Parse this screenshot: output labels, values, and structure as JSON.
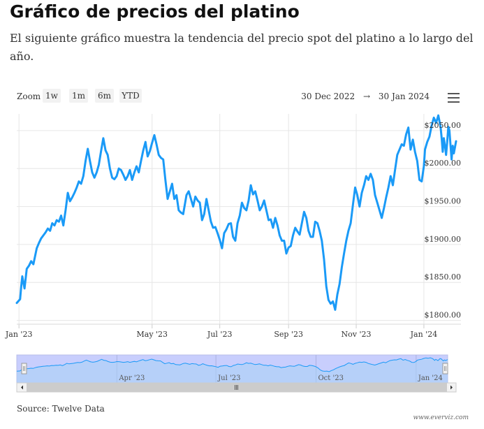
{
  "header": {
    "title": "Gráfico de precios del platino",
    "subtitle": "El siguiente gráfico muestra la tendencia del precio spot del platino a lo largo del año."
  },
  "toolbar": {
    "zoom_label": "Zoom",
    "buttons": [
      "1w",
      "1m",
      "6m",
      "YTD"
    ],
    "date_from": "30 Dec 2022",
    "arrow": "→",
    "date_to": "30 Jan 2024",
    "menu_icon": "hamburger-menu-icon"
  },
  "footer": {
    "source": "Source: Twelve Data",
    "credit": "www.everviz.com"
  },
  "chart_data": {
    "type": "line",
    "title": "",
    "xlabel": "",
    "ylabel": "",
    "ylim": [
      1795,
      2072
    ],
    "xlim": [
      "2022-12-30",
      "2024-01-30"
    ],
    "y_ticks": [
      "$1800.00",
      "$1850.00",
      "$1900.00",
      "$1950.00",
      "$2000.00",
      "$2050.00"
    ],
    "y_tick_values": [
      1800,
      1850,
      1900,
      1950,
      2000,
      2050
    ],
    "x_ticks": [
      "Jan '23",
      "May '23",
      "Jul '23",
      "Sep '23",
      "Nov '23",
      "Jan '24"
    ],
    "x_tick_dates": [
      "2023-01-01",
      "2023-05-01",
      "2023-07-01",
      "2023-09-01",
      "2023-11-01",
      "2024-01-01"
    ],
    "navigator_ticks": [
      "Apr '23",
      "Jul '23",
      "Oct '23",
      "Jan '24"
    ],
    "navigator_tick_dates": [
      "2023-04-01",
      "2023-07-01",
      "2023-10-01",
      "2024-01-01"
    ],
    "color": "#1a9af7",
    "grid": true,
    "series": [
      {
        "values": [
          [
            "2022-12-30",
            1823
          ],
          [
            "2023-01-02",
            1828
          ],
          [
            "2023-01-03",
            1845
          ],
          [
            "2023-01-04",
            1858
          ],
          [
            "2023-01-06",
            1842
          ],
          [
            "2023-01-08",
            1868
          ],
          [
            "2023-01-10",
            1872
          ],
          [
            "2023-01-12",
            1878
          ],
          [
            "2023-01-14",
            1874
          ],
          [
            "2023-01-17",
            1895
          ],
          [
            "2023-01-19",
            1902
          ],
          [
            "2023-01-21",
            1908
          ],
          [
            "2023-01-23",
            1912
          ],
          [
            "2023-01-25",
            1916
          ],
          [
            "2023-01-27",
            1921
          ],
          [
            "2023-01-29",
            1918
          ],
          [
            "2023-01-31",
            1928
          ],
          [
            "2023-02-02",
            1925
          ],
          [
            "2023-02-04",
            1932
          ],
          [
            "2023-02-06",
            1930
          ],
          [
            "2023-02-08",
            1938
          ],
          [
            "2023-02-10",
            1925
          ],
          [
            "2023-02-12",
            1945
          ],
          [
            "2023-02-14",
            1968
          ],
          [
            "2023-02-16",
            1957
          ],
          [
            "2023-02-18",
            1962
          ],
          [
            "2023-02-20",
            1968
          ],
          [
            "2023-02-22",
            1975
          ],
          [
            "2023-02-24",
            1983
          ],
          [
            "2023-02-26",
            1980
          ],
          [
            "2023-02-28",
            1990
          ],
          [
            "2023-03-02",
            2010
          ],
          [
            "2023-03-04",
            2026
          ],
          [
            "2023-03-06",
            2010
          ],
          [
            "2023-03-08",
            1995
          ],
          [
            "2023-03-10",
            1988
          ],
          [
            "2023-03-12",
            1995
          ],
          [
            "2023-03-14",
            2005
          ],
          [
            "2023-03-16",
            2023
          ],
          [
            "2023-03-18",
            2040
          ],
          [
            "2023-03-20",
            2024
          ],
          [
            "2023-03-22",
            2018
          ],
          [
            "2023-03-24",
            2000
          ],
          [
            "2023-03-26",
            1988
          ],
          [
            "2023-03-28",
            1986
          ],
          [
            "2023-03-30",
            1990
          ],
          [
            "2023-04-01",
            2000
          ],
          [
            "2023-04-03",
            1998
          ],
          [
            "2023-04-05",
            1992
          ],
          [
            "2023-04-07",
            1985
          ],
          [
            "2023-04-09",
            1990
          ],
          [
            "2023-04-11",
            1998
          ],
          [
            "2023-04-13",
            1985
          ],
          [
            "2023-04-15",
            1995
          ],
          [
            "2023-04-17",
            2003
          ],
          [
            "2023-04-19",
            1995
          ],
          [
            "2023-04-21",
            2010
          ],
          [
            "2023-04-23",
            2024
          ],
          [
            "2023-04-25",
            2035
          ],
          [
            "2023-04-27",
            2016
          ],
          [
            "2023-04-29",
            2023
          ],
          [
            "2023-05-01",
            2034
          ],
          [
            "2023-05-03",
            2044
          ],
          [
            "2023-05-05",
            2032
          ],
          [
            "2023-05-07",
            2018
          ],
          [
            "2023-05-09",
            2014
          ],
          [
            "2023-05-11",
            2012
          ],
          [
            "2023-05-13",
            1985
          ],
          [
            "2023-05-15",
            1960
          ],
          [
            "2023-05-17",
            1970
          ],
          [
            "2023-05-19",
            1980
          ],
          [
            "2023-05-21",
            1960
          ],
          [
            "2023-05-23",
            1965
          ],
          [
            "2023-05-25",
            1945
          ],
          [
            "2023-05-27",
            1942
          ],
          [
            "2023-05-29",
            1940
          ],
          [
            "2023-06-01",
            1965
          ],
          [
            "2023-06-03",
            1970
          ],
          [
            "2023-06-05",
            1960
          ],
          [
            "2023-06-07",
            1950
          ],
          [
            "2023-06-09",
            1963
          ],
          [
            "2023-06-11",
            1958
          ],
          [
            "2023-06-13",
            1955
          ],
          [
            "2023-06-15",
            1932
          ],
          [
            "2023-06-17",
            1940
          ],
          [
            "2023-06-19",
            1960
          ],
          [
            "2023-06-21",
            1945
          ],
          [
            "2023-06-23",
            1930
          ],
          [
            "2023-06-25",
            1922
          ],
          [
            "2023-06-27",
            1923
          ],
          [
            "2023-06-29",
            1915
          ],
          [
            "2023-07-01",
            1906
          ],
          [
            "2023-07-03",
            1895
          ],
          [
            "2023-07-05",
            1915
          ],
          [
            "2023-07-07",
            1920
          ],
          [
            "2023-07-09",
            1927
          ],
          [
            "2023-07-11",
            1928
          ],
          [
            "2023-07-13",
            1910
          ],
          [
            "2023-07-15",
            1905
          ],
          [
            "2023-07-17",
            1928
          ],
          [
            "2023-07-19",
            1938
          ],
          [
            "2023-07-21",
            1955
          ],
          [
            "2023-07-23",
            1948
          ],
          [
            "2023-07-25",
            1945
          ],
          [
            "2023-07-27",
            1958
          ],
          [
            "2023-07-29",
            1978
          ],
          [
            "2023-07-31",
            1966
          ],
          [
            "2023-08-02",
            1970
          ],
          [
            "2023-08-04",
            1958
          ],
          [
            "2023-08-06",
            1945
          ],
          [
            "2023-08-08",
            1950
          ],
          [
            "2023-08-10",
            1958
          ],
          [
            "2023-08-12",
            1945
          ],
          [
            "2023-08-14",
            1932
          ],
          [
            "2023-08-16",
            1933
          ],
          [
            "2023-08-18",
            1922
          ],
          [
            "2023-08-20",
            1935
          ],
          [
            "2023-08-22",
            1925
          ],
          [
            "2023-08-24",
            1912
          ],
          [
            "2023-08-26",
            1905
          ],
          [
            "2023-08-28",
            1905
          ],
          [
            "2023-08-30",
            1888
          ],
          [
            "2023-09-01",
            1896
          ],
          [
            "2023-09-03",
            1898
          ],
          [
            "2023-09-05",
            1912
          ],
          [
            "2023-09-07",
            1922
          ],
          [
            "2023-09-09",
            1917
          ],
          [
            "2023-09-11",
            1913
          ],
          [
            "2023-09-13",
            1928
          ],
          [
            "2023-09-15",
            1943
          ],
          [
            "2023-09-17",
            1935
          ],
          [
            "2023-09-19",
            1918
          ],
          [
            "2023-09-21",
            1910
          ],
          [
            "2023-09-23",
            1910
          ],
          [
            "2023-09-25",
            1930
          ],
          [
            "2023-09-27",
            1928
          ],
          [
            "2023-09-29",
            1918
          ],
          [
            "2023-10-01",
            1905
          ],
          [
            "2023-10-03",
            1880
          ],
          [
            "2023-10-05",
            1845
          ],
          [
            "2023-10-07",
            1827
          ],
          [
            "2023-10-09",
            1822
          ],
          [
            "2023-10-11",
            1825
          ],
          [
            "2023-10-13",
            1814
          ],
          [
            "2023-10-15",
            1834
          ],
          [
            "2023-10-17",
            1848
          ],
          [
            "2023-10-19",
            1870
          ],
          [
            "2023-10-21",
            1888
          ],
          [
            "2023-10-23",
            1905
          ],
          [
            "2023-10-25",
            1918
          ],
          [
            "2023-10-27",
            1928
          ],
          [
            "2023-10-29",
            1952
          ],
          [
            "2023-10-31",
            1975
          ],
          [
            "2023-11-02",
            1965
          ],
          [
            "2023-11-04",
            1950
          ],
          [
            "2023-11-06",
            1968
          ],
          [
            "2023-11-08",
            1978
          ],
          [
            "2023-11-10",
            1990
          ],
          [
            "2023-11-12",
            1985
          ],
          [
            "2023-11-14",
            1993
          ],
          [
            "2023-11-16",
            1985
          ],
          [
            "2023-11-18",
            1965
          ],
          [
            "2023-11-20",
            1955
          ],
          [
            "2023-11-22",
            1945
          ],
          [
            "2023-11-24",
            1935
          ],
          [
            "2023-11-26",
            1948
          ],
          [
            "2023-11-28",
            1962
          ],
          [
            "2023-11-30",
            1975
          ],
          [
            "2023-12-02",
            1990
          ],
          [
            "2023-12-04",
            1978
          ],
          [
            "2023-12-06",
            1998
          ],
          [
            "2023-12-08",
            2018
          ],
          [
            "2023-12-10",
            2025
          ],
          [
            "2023-12-12",
            2032
          ],
          [
            "2023-12-14",
            2030
          ],
          [
            "2023-12-16",
            2045
          ],
          [
            "2023-12-18",
            2054
          ],
          [
            "2023-12-20",
            2025
          ],
          [
            "2023-12-22",
            2038
          ],
          [
            "2023-12-24",
            2022
          ],
          [
            "2023-12-26",
            2010
          ],
          [
            "2023-12-28",
            1985
          ],
          [
            "2023-12-30",
            1983
          ],
          [
            "2024-01-01",
            2003
          ],
          [
            "2024-01-02",
            2025
          ],
          [
            "2024-01-04",
            2035
          ],
          [
            "2024-01-06",
            2042
          ],
          [
            "2024-01-08",
            2057
          ],
          [
            "2024-01-10",
            2067
          ],
          [
            "2024-01-12",
            2060
          ],
          [
            "2024-01-14",
            2070
          ],
          [
            "2024-01-16",
            2055
          ],
          [
            "2024-01-17",
            2040
          ],
          [
            "2024-01-18",
            2022
          ],
          [
            "2024-01-19",
            2040
          ],
          [
            "2024-01-20",
            2030
          ],
          [
            "2024-01-21",
            2018
          ],
          [
            "2024-01-22",
            2035
          ],
          [
            "2024-01-23",
            2055
          ],
          [
            "2024-01-24",
            2050
          ],
          [
            "2024-01-25",
            2030
          ],
          [
            "2024-01-26",
            2012
          ],
          [
            "2024-01-27",
            2030
          ],
          [
            "2024-01-28",
            2020
          ],
          [
            "2024-01-29",
            2028
          ],
          [
            "2024-01-30",
            2036
          ]
        ]
      }
    ]
  }
}
